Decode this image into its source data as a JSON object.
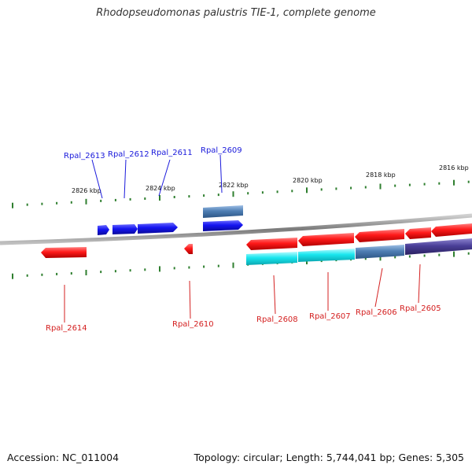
{
  "title": "Rhodopseudomonas palustris TIE-1, complete genome",
  "footer": {
    "accession": "Accession: NC_011004",
    "summary": "Topology: circular; Length: 5,744,041 bp; Genes: 5,305"
  },
  "colors": {
    "upper_label": "#1a1adb",
    "lower_label": "#d42020",
    "tick": "#2f7f2f",
    "backbone": "#8a8a8a",
    "gene_red": "#ff1a1a",
    "gene_blue": "#1414f0",
    "gene_steel": "#4f7fb4",
    "gene_cyan": "#19e6ee",
    "gene_purple": "#4a3f98"
  },
  "ruler": {
    "kbp_labels": [
      "2826 kbp",
      "2824 kbp",
      "2822 kbp",
      "2820 kbp",
      "2818 kbp",
      "2816 kbp"
    ]
  },
  "upper_labels": [
    "Rpal_2613",
    "Rpal_2612",
    "Rpal_2611",
    "Rpal_2609"
  ],
  "lower_labels": [
    "Rpal_2614",
    "Rpal_2610",
    "Rpal_2608",
    "Rpal_2607",
    "Rpal_2606",
    "Rpal_2605"
  ]
}
